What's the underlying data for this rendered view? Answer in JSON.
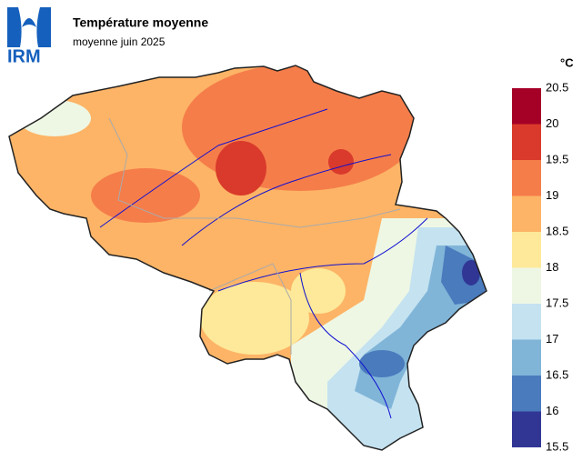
{
  "logo": "IRM",
  "title": "Température moyenne",
  "subtitle": "moyenne juin 2025",
  "legend": {
    "unit": "°C",
    "ticks": [
      15.5,
      16,
      16.5,
      17,
      17.5,
      18,
      18.5,
      19,
      19.5,
      20,
      20.5
    ],
    "colors": [
      "#313695",
      "#4a7bbd",
      "#80b5d8",
      "#c4e2f0",
      "#eef7e4",
      "#fee99a",
      "#fdb466",
      "#f57d4a",
      "#d93a2b",
      "#a50026"
    ]
  }
}
